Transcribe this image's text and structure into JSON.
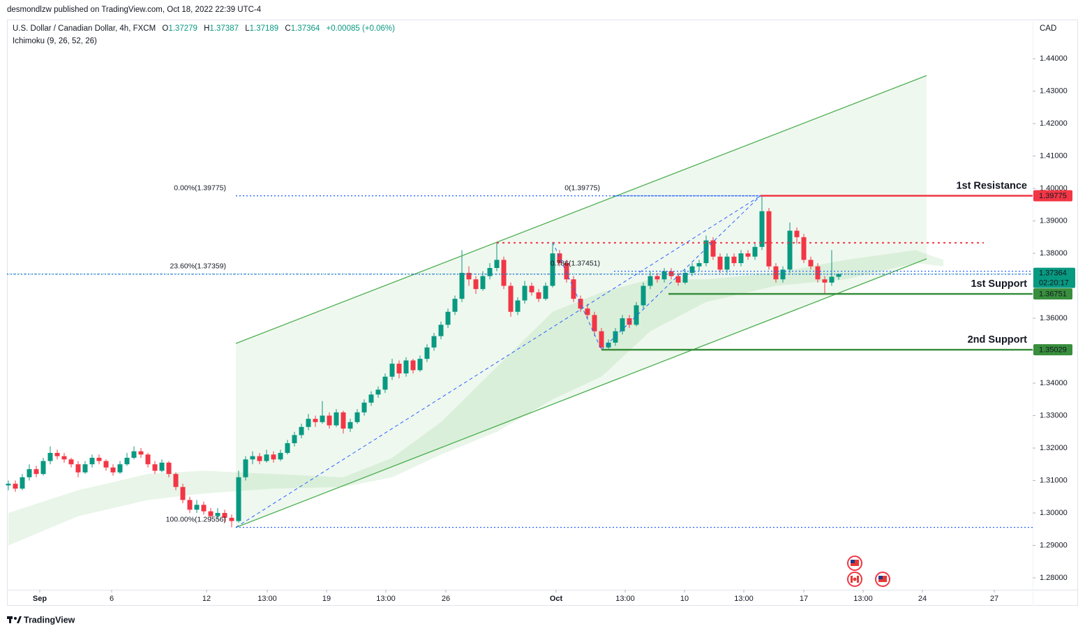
{
  "published": "desmondlzw published on TradingView.com, Oct 18, 2022 22:39 UTC-4",
  "brand": "TradingView",
  "chart_data": {
    "type": "candlestick",
    "title": "U.S. Dollar / Canadian Dollar, 4h, FXCM",
    "ohlc_labels": [
      "O",
      "H",
      "L",
      "C"
    ],
    "change": "+0.00085 (+0.06%)",
    "indicator": "Ichimoku (9, 26, 52, 26)",
    "currency": "CAD",
    "countdown": "02:20:17",
    "up_color": "#089981",
    "down_color": "#f23645",
    "open": [
      1.3085,
      1.309,
      1.3075,
      1.311,
      1.3135,
      1.312,
      1.316,
      1.3185,
      1.3175,
      1.3165,
      1.315,
      1.3125,
      1.315,
      1.317,
      1.316,
      1.314,
      1.3125,
      1.315,
      1.317,
      1.319,
      1.318,
      1.315,
      1.313,
      1.3155,
      1.312,
      1.308,
      1.304,
      1.301,
      1.3025,
      1.3005,
      1.299,
      1.3,
      1.2985,
      1.2975,
      1.311,
      1.3165,
      1.3175,
      1.316,
      1.318,
      1.3165,
      1.3185,
      1.3215,
      1.324,
      1.3265,
      1.329,
      1.328,
      1.33,
      1.327,
      1.331,
      1.326,
      1.328,
      1.331,
      1.334,
      1.3365,
      1.338,
      1.342,
      1.346,
      1.343,
      1.347,
      1.344,
      1.3475,
      1.351,
      1.3545,
      1.358,
      1.362,
      1.366,
      1.374,
      1.372,
      1.369,
      1.373,
      1.3755,
      1.378,
      1.37,
      1.362,
      1.3655,
      1.37,
      1.368,
      1.366,
      1.37,
      1.38,
      1.377,
      1.372,
      1.366,
      1.363,
      1.361,
      1.356,
      1.351,
      1.3525,
      1.356,
      1.36,
      1.358,
      1.364,
      1.37,
      1.373,
      1.372,
      1.3745,
      1.373,
      1.371,
      1.374,
      1.376,
      1.377,
      1.384,
      1.379,
      1.375,
      1.379,
      1.377,
      1.38,
      1.379,
      1.382,
      1.393,
      1.376,
      1.372,
      1.375,
      1.387,
      1.385,
      1.378,
      1.376,
      1.372,
      1.371,
      1.37279
    ],
    "high": [
      1.31,
      1.31,
      1.312,
      1.315,
      1.3145,
      1.317,
      1.3205,
      1.3195,
      1.3185,
      1.317,
      1.316,
      1.316,
      1.318,
      1.318,
      1.3165,
      1.315,
      1.316,
      1.3185,
      1.3205,
      1.32,
      1.3185,
      1.316,
      1.3165,
      1.316,
      1.3125,
      1.309,
      1.305,
      1.304,
      1.3035,
      1.3015,
      1.3015,
      1.301,
      1.2995,
      1.313,
      1.3175,
      1.319,
      1.3185,
      1.3195,
      1.319,
      1.3195,
      1.3225,
      1.325,
      1.3275,
      1.3305,
      1.33,
      1.3345,
      1.331,
      1.332,
      1.3315,
      1.329,
      1.332,
      1.335,
      1.3375,
      1.339,
      1.343,
      1.3475,
      1.347,
      1.348,
      1.3475,
      1.3485,
      1.352,
      1.3555,
      1.359,
      1.363,
      1.367,
      1.381,
      1.376,
      1.373,
      1.3745,
      1.377,
      1.3835,
      1.379,
      1.371,
      1.3665,
      1.3715,
      1.371,
      1.369,
      1.371,
      1.3835,
      1.381,
      1.378,
      1.373,
      1.367,
      1.3645,
      1.362,
      1.357,
      1.3535,
      1.357,
      1.361,
      1.361,
      1.365,
      1.371,
      1.3745,
      1.374,
      1.3755,
      1.3755,
      1.374,
      1.375,
      1.377,
      1.378,
      1.3855,
      1.385,
      1.38,
      1.38,
      1.38,
      1.381,
      1.381,
      1.383,
      1.39775,
      1.394,
      1.377,
      1.376,
      1.3895,
      1.388,
      1.386,
      1.379,
      1.377,
      1.373,
      1.381,
      1.37387
    ],
    "low": [
      1.307,
      1.3065,
      1.307,
      1.31,
      1.311,
      1.3115,
      1.315,
      1.3165,
      1.3155,
      1.314,
      1.311,
      1.312,
      1.314,
      1.315,
      1.313,
      1.3115,
      1.312,
      1.3145,
      1.3165,
      1.317,
      1.314,
      1.312,
      1.3125,
      1.311,
      1.307,
      1.303,
      1.3,
      1.3,
      1.2995,
      1.2975,
      1.298,
      1.297,
      1.29556,
      1.297,
      1.31,
      1.315,
      1.315,
      1.3155,
      1.3155,
      1.316,
      1.318,
      1.3205,
      1.323,
      1.3255,
      1.3265,
      1.3275,
      1.326,
      1.3265,
      1.3245,
      1.325,
      1.3275,
      1.33,
      1.333,
      1.3355,
      1.337,
      1.341,
      1.3415,
      1.342,
      1.343,
      1.3435,
      1.3465,
      1.35,
      1.3535,
      1.357,
      1.361,
      1.365,
      1.37,
      1.3675,
      1.3685,
      1.372,
      1.3745,
      1.369,
      1.3605,
      1.361,
      1.3645,
      1.367,
      1.365,
      1.3655,
      1.3695,
      1.376,
      1.371,
      1.365,
      1.362,
      1.36,
      1.3545,
      1.35029,
      1.3505,
      1.3515,
      1.355,
      1.357,
      1.3575,
      1.363,
      1.369,
      1.371,
      1.371,
      1.372,
      1.37,
      1.3705,
      1.373,
      1.3745,
      1.376,
      1.378,
      1.374,
      1.374,
      1.376,
      1.376,
      1.378,
      1.378,
      1.381,
      1.375,
      1.371,
      1.371,
      1.374,
      1.383,
      1.377,
      1.375,
      1.371,
      1.36751,
      1.37,
      1.37189
    ],
    "close": [
      1.309,
      1.3075,
      1.311,
      1.3135,
      1.312,
      1.316,
      1.3185,
      1.3175,
      1.3165,
      1.315,
      1.3125,
      1.315,
      1.317,
      1.316,
      1.314,
      1.3125,
      1.315,
      1.317,
      1.319,
      1.318,
      1.315,
      1.313,
      1.3155,
      1.312,
      1.308,
      1.304,
      1.301,
      1.3025,
      1.3005,
      1.299,
      1.3,
      1.2985,
      1.2975,
      1.311,
      1.3165,
      1.3175,
      1.316,
      1.318,
      1.3165,
      1.3185,
      1.3215,
      1.324,
      1.3265,
      1.329,
      1.328,
      1.33,
      1.327,
      1.331,
      1.326,
      1.328,
      1.331,
      1.334,
      1.3365,
      1.338,
      1.342,
      1.346,
      1.343,
      1.347,
      1.344,
      1.3475,
      1.351,
      1.3545,
      1.358,
      1.362,
      1.366,
      1.374,
      1.372,
      1.369,
      1.373,
      1.3755,
      1.378,
      1.37,
      1.362,
      1.3655,
      1.37,
      1.368,
      1.366,
      1.37,
      1.38,
      1.377,
      1.372,
      1.366,
      1.363,
      1.361,
      1.356,
      1.351,
      1.3525,
      1.356,
      1.36,
      1.358,
      1.364,
      1.37,
      1.373,
      1.372,
      1.3745,
      1.373,
      1.371,
      1.374,
      1.376,
      1.377,
      1.384,
      1.379,
      1.375,
      1.379,
      1.377,
      1.38,
      1.379,
      1.382,
      1.393,
      1.376,
      1.372,
      1.375,
      1.387,
      1.385,
      1.378,
      1.376,
      1.372,
      1.371,
      1.37279,
      1.37364
    ],
    "xlim": [
      -0.2,
      146.8
    ],
    "xticks": [
      {
        "value": 4.5,
        "label": "Sep"
      },
      {
        "value": 14.8,
        "label": "6"
      },
      {
        "value": 28.4,
        "label": "12"
      },
      {
        "value": 37.1,
        "label": "13:00"
      },
      {
        "value": 45.6,
        "label": "19"
      },
      {
        "value": 54.1,
        "label": "13:00"
      },
      {
        "value": 62.7,
        "label": "26"
      },
      {
        "value": 78.5,
        "label": "Oct"
      },
      {
        "value": 88.4,
        "label": "13:00"
      },
      {
        "value": 96.9,
        "label": "10"
      },
      {
        "value": 105.4,
        "label": "13:00"
      },
      {
        "value": 114,
        "label": "17"
      },
      {
        "value": 122.5,
        "label": "13:00"
      },
      {
        "value": 131,
        "label": "24"
      },
      {
        "value": 141.3,
        "label": "27"
      }
    ],
    "ylim": [
      1.27633,
      1.45208
    ],
    "yticks": [
      {
        "value": 1.44,
        "label": "1.44000"
      },
      {
        "value": 1.43,
        "label": "1.43000"
      },
      {
        "value": 1.42,
        "label": "1.42000"
      },
      {
        "value": 1.41,
        "label": "1.41000"
      },
      {
        "value": 1.4,
        "label": "1.40000"
      },
      {
        "value": 1.39,
        "label": "1.39000"
      },
      {
        "value": 1.38,
        "label": "1.38000"
      },
      {
        "value": 1.37,
        "label": "1.37000"
      },
      {
        "value": 1.36,
        "label": "1.36000"
      },
      {
        "value": 1.35,
        "label": "1.35000"
      },
      {
        "value": 1.34,
        "label": "1.34000"
      },
      {
        "value": 1.33,
        "label": "1.33000"
      },
      {
        "value": 1.32,
        "label": "1.32000"
      },
      {
        "value": 1.31,
        "label": "1.31000"
      },
      {
        "value": 1.3,
        "label": "1.30000"
      },
      {
        "value": 1.29,
        "label": "1.29000"
      },
      {
        "value": 1.28,
        "label": "1.28000"
      }
    ],
    "cloud": {
      "color": "#4caf50",
      "x": [
        0,
        10,
        20,
        28,
        38,
        48,
        55,
        62,
        70,
        78,
        85,
        92,
        100,
        110,
        120,
        130,
        134
      ],
      "upper": [
        1.3,
        1.307,
        1.312,
        1.313,
        1.312,
        1.311,
        1.317,
        1.328,
        1.345,
        1.362,
        1.368,
        1.372,
        1.372,
        1.374,
        1.378,
        1.381,
        1.378
      ],
      "lower": [
        1.29,
        1.299,
        1.304,
        1.306,
        1.3075,
        1.308,
        1.311,
        1.318,
        1.325,
        1.335,
        1.342,
        1.356,
        1.365,
        1.37,
        1.372,
        1.377,
        1.376
      ]
    },
    "channel": {
      "color": "#4caf50",
      "x": [
        32.6,
        131.6
      ],
      "upper": [
        1.35224,
        1.43482
      ],
      "lower": [
        1.29553,
        1.37833
      ]
    },
    "fib_color": "#2962ff",
    "fib_levels": [
      {
        "label": "0.00%(1.39775)",
        "value": 1.39775,
        "start": 32.6,
        "end": 107.8,
        "anchor": 32.2
      },
      {
        "label": "23.60%(1.37359)",
        "value": 1.37359,
        "start": -0.2,
        "end": 146.8,
        "anchor": 32.2
      },
      {
        "label": "100.00%(1.29556)",
        "value": 1.29556,
        "start": 32.6,
        "end": 146.8,
        "anchor": 32.2
      },
      {
        "label": "0(1.39775)",
        "value": 1.39775,
        "start": 86.8,
        "end": 107.8,
        "anchor": 85.8
      },
      {
        "label": "0.786(1.37451)",
        "value": 1.37451,
        "start": 86.8,
        "end": 146.8,
        "anchor": 85.8
      }
    ],
    "trend_lines": [
      {
        "x": [
          32.6,
          107.8
        ],
        "y": [
          1.29556,
          1.39775
        ]
      },
      {
        "x": [
          78,
          85
        ],
        "y": [
          1.3835,
          1.35029
        ]
      },
      {
        "x": [
          85,
          107.8
        ],
        "y": [
          1.35029,
          1.39775
        ]
      }
    ],
    "dotted_levels": [
      {
        "value": 1.38328,
        "color": "#f23645",
        "start": 70,
        "end": 139.8
      }
    ],
    "levels": [
      {
        "name": "1st Resistance",
        "value": 1.39775,
        "color": "#f23645",
        "start": 107.8
      },
      {
        "name": "1st Support",
        "value": 1.36751,
        "color": "#388e3c",
        "start": 94.6
      },
      {
        "name": "2nd Support",
        "value": 1.35029,
        "color": "#388e3c",
        "start": 85
      }
    ]
  }
}
